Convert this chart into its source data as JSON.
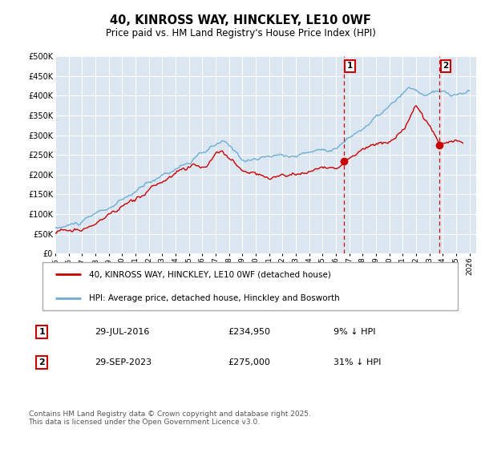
{
  "title": "40, KINROSS WAY, HINCKLEY, LE10 0WF",
  "subtitle": "Price paid vs. HM Land Registry's House Price Index (HPI)",
  "plot_bg_color": "#dce6f1",
  "ylim": [
    0,
    500000
  ],
  "yticks": [
    0,
    50000,
    100000,
    150000,
    200000,
    250000,
    300000,
    350000,
    400000,
    450000,
    500000
  ],
  "xlim_start": 1995.0,
  "xlim_end": 2026.5,
  "vline1_x": 2016.58,
  "vline2_x": 2023.75,
  "vline_color": "#cc0000",
  "point1_x": 2016.58,
  "point1_y": 234950,
  "point2_x": 2023.75,
  "point2_y": 275000,
  "marker_color": "#cc0000",
  "legend_label_red": "40, KINROSS WAY, HINCKLEY, LE10 0WF (detached house)",
  "legend_label_blue": "HPI: Average price, detached house, Hinckley and Bosworth",
  "annotation1_label": "1",
  "annotation1_date": "29-JUL-2016",
  "annotation1_price": "£234,950",
  "annotation1_hpi": "9% ↓ HPI",
  "annotation2_label": "2",
  "annotation2_date": "29-SEP-2023",
  "annotation2_price": "£275,000",
  "annotation2_hpi": "31% ↓ HPI",
  "footer": "Contains HM Land Registry data © Crown copyright and database right 2025.\nThis data is licensed under the Open Government Licence v3.0.",
  "red_line_color": "#cc0000",
  "blue_line_color": "#6baed6",
  "grid_color": "#ffffff",
  "legend_border_color": "#aaaaaa",
  "annotation_border_color": "#cc0000"
}
